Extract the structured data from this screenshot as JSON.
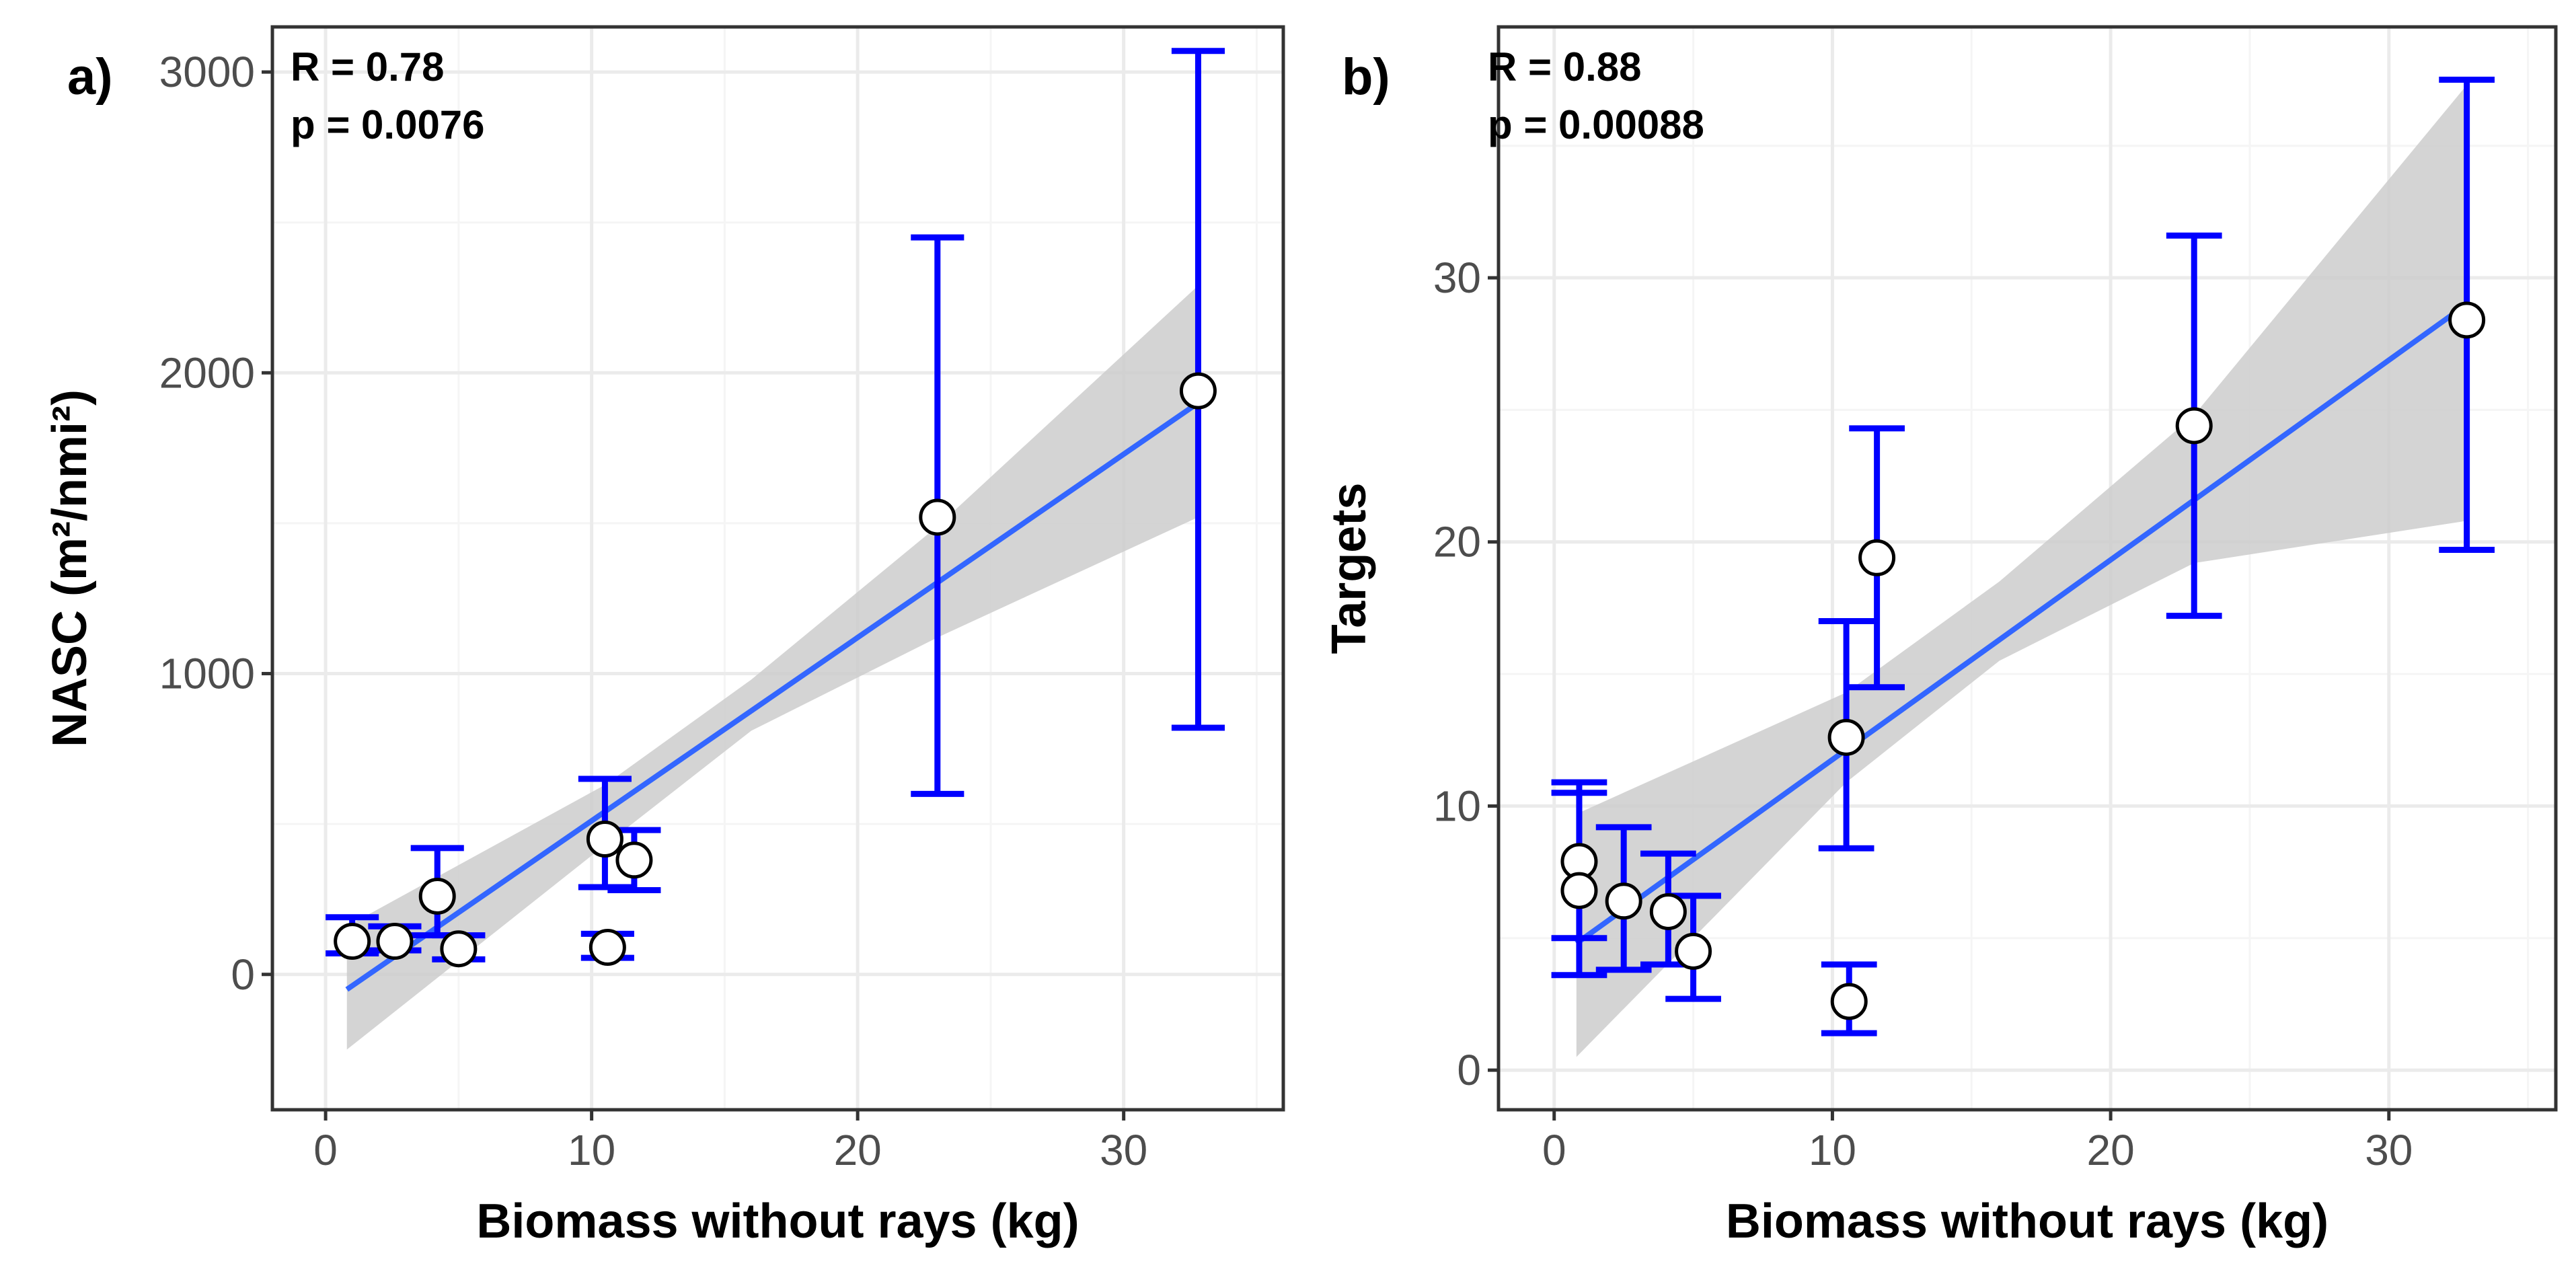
{
  "colors": {
    "background": "#ffffff",
    "panel_border": "#333333",
    "grid_major": "#ebebeb",
    "grid_minor": "#f5f5f5",
    "ribbon": "#cccccc",
    "fit_line": "#3366ff",
    "error_bar": "#0000ff",
    "point_fill": "#ffffff",
    "point_stroke": "#000000"
  },
  "chart_data": [
    {
      "type": "scatter",
      "panel_label": "a)",
      "title": "",
      "xlabel": "Biomass without rays (kg)",
      "ylabel": "NASC (m²/nmi²)",
      "xlim": [
        -2,
        36
      ],
      "ylim": [
        -450,
        3150
      ],
      "xticks": [
        0,
        10,
        20,
        30
      ],
      "xtick_labels": [
        "0",
        "10",
        "20",
        "30"
      ],
      "yticks": [
        0,
        1000,
        2000,
        3000
      ],
      "ytick_labels": [
        "0",
        "1000",
        "2000",
        "3000"
      ],
      "grid": true,
      "annotations": [
        "R = 0.78",
        "p = 0.0076"
      ],
      "points": [
        {
          "x": 1.0,
          "y": 110,
          "lo": 70,
          "hi": 190
        },
        {
          "x": 2.6,
          "y": 110,
          "lo": 80,
          "hi": 160
        },
        {
          "x": 4.2,
          "y": 260,
          "lo": 130,
          "hi": 420
        },
        {
          "x": 5.0,
          "y": 85,
          "lo": 50,
          "hi": 130
        },
        {
          "x": 10.5,
          "y": 450,
          "lo": 290,
          "hi": 650
        },
        {
          "x": 10.6,
          "y": 90,
          "lo": 55,
          "hi": 135
        },
        {
          "x": 11.6,
          "y": 380,
          "lo": 280,
          "hi": 480
        },
        {
          "x": 23.0,
          "y": 1520,
          "lo": 600,
          "hi": 2450
        },
        {
          "x": 32.8,
          "y": 1940,
          "lo": 820,
          "hi": 3070
        }
      ],
      "fit": {
        "x": [
          0.8,
          32.8
        ],
        "y": [
          -50,
          1900
        ]
      },
      "ribbon": {
        "x": [
          0.8,
          10.5,
          16,
          23,
          32.8
        ],
        "lower": [
          -250,
          430,
          810,
          1120,
          1520
        ],
        "upper": [
          160,
          630,
          980,
          1490,
          2290
        ]
      },
      "error_bar_cap_halfwidth": 1.0
    },
    {
      "type": "scatter",
      "panel_label": "b)",
      "title": "",
      "xlabel": "Biomass without rays (kg)",
      "ylabel": "Targets",
      "xlim": [
        -2,
        36
      ],
      "ylim": [
        -1.5,
        39.5
      ],
      "xticks": [
        0,
        10,
        20,
        30
      ],
      "xtick_labels": [
        "0",
        "10",
        "20",
        "30"
      ],
      "yticks": [
        0,
        10,
        20,
        30
      ],
      "ytick_labels": [
        "0",
        "10",
        "20",
        "30"
      ],
      "grid": true,
      "annotations": [
        "R = 0.88",
        "p = 0.00088"
      ],
      "points": [
        {
          "x": 0.9,
          "y": 7.9,
          "lo": 5.0,
          "hi": 10.9
        },
        {
          "x": 0.9,
          "y": 6.8,
          "lo": 3.6,
          "hi": 10.5
        },
        {
          "x": 2.5,
          "y": 6.4,
          "lo": 3.8,
          "hi": 9.2
        },
        {
          "x": 4.1,
          "y": 6.0,
          "lo": 4.0,
          "hi": 8.2
        },
        {
          "x": 5.0,
          "y": 4.5,
          "lo": 2.7,
          "hi": 6.6
        },
        {
          "x": 10.5,
          "y": 12.6,
          "lo": 8.4,
          "hi": 17.0
        },
        {
          "x": 10.6,
          "y": 2.6,
          "lo": 1.4,
          "hi": 4.0
        },
        {
          "x": 11.6,
          "y": 19.4,
          "lo": 14.5,
          "hi": 24.3
        },
        {
          "x": 23.0,
          "y": 24.4,
          "lo": 17.2,
          "hi": 31.6
        },
        {
          "x": 32.8,
          "y": 28.4,
          "lo": 19.7,
          "hi": 37.5
        }
      ],
      "fit": {
        "x": [
          0.8,
          32.8
        ],
        "y": [
          4.8,
          29.0
        ]
      },
      "ribbon": {
        "x": [
          0.8,
          10.5,
          16,
          23,
          32.8
        ],
        "lower": [
          0.5,
          10.9,
          15.5,
          19.2,
          20.8
        ],
        "upper": [
          9.7,
          14.3,
          18.5,
          24.8,
          37.3
        ]
      },
      "error_bar_cap_halfwidth": 1.0
    }
  ]
}
